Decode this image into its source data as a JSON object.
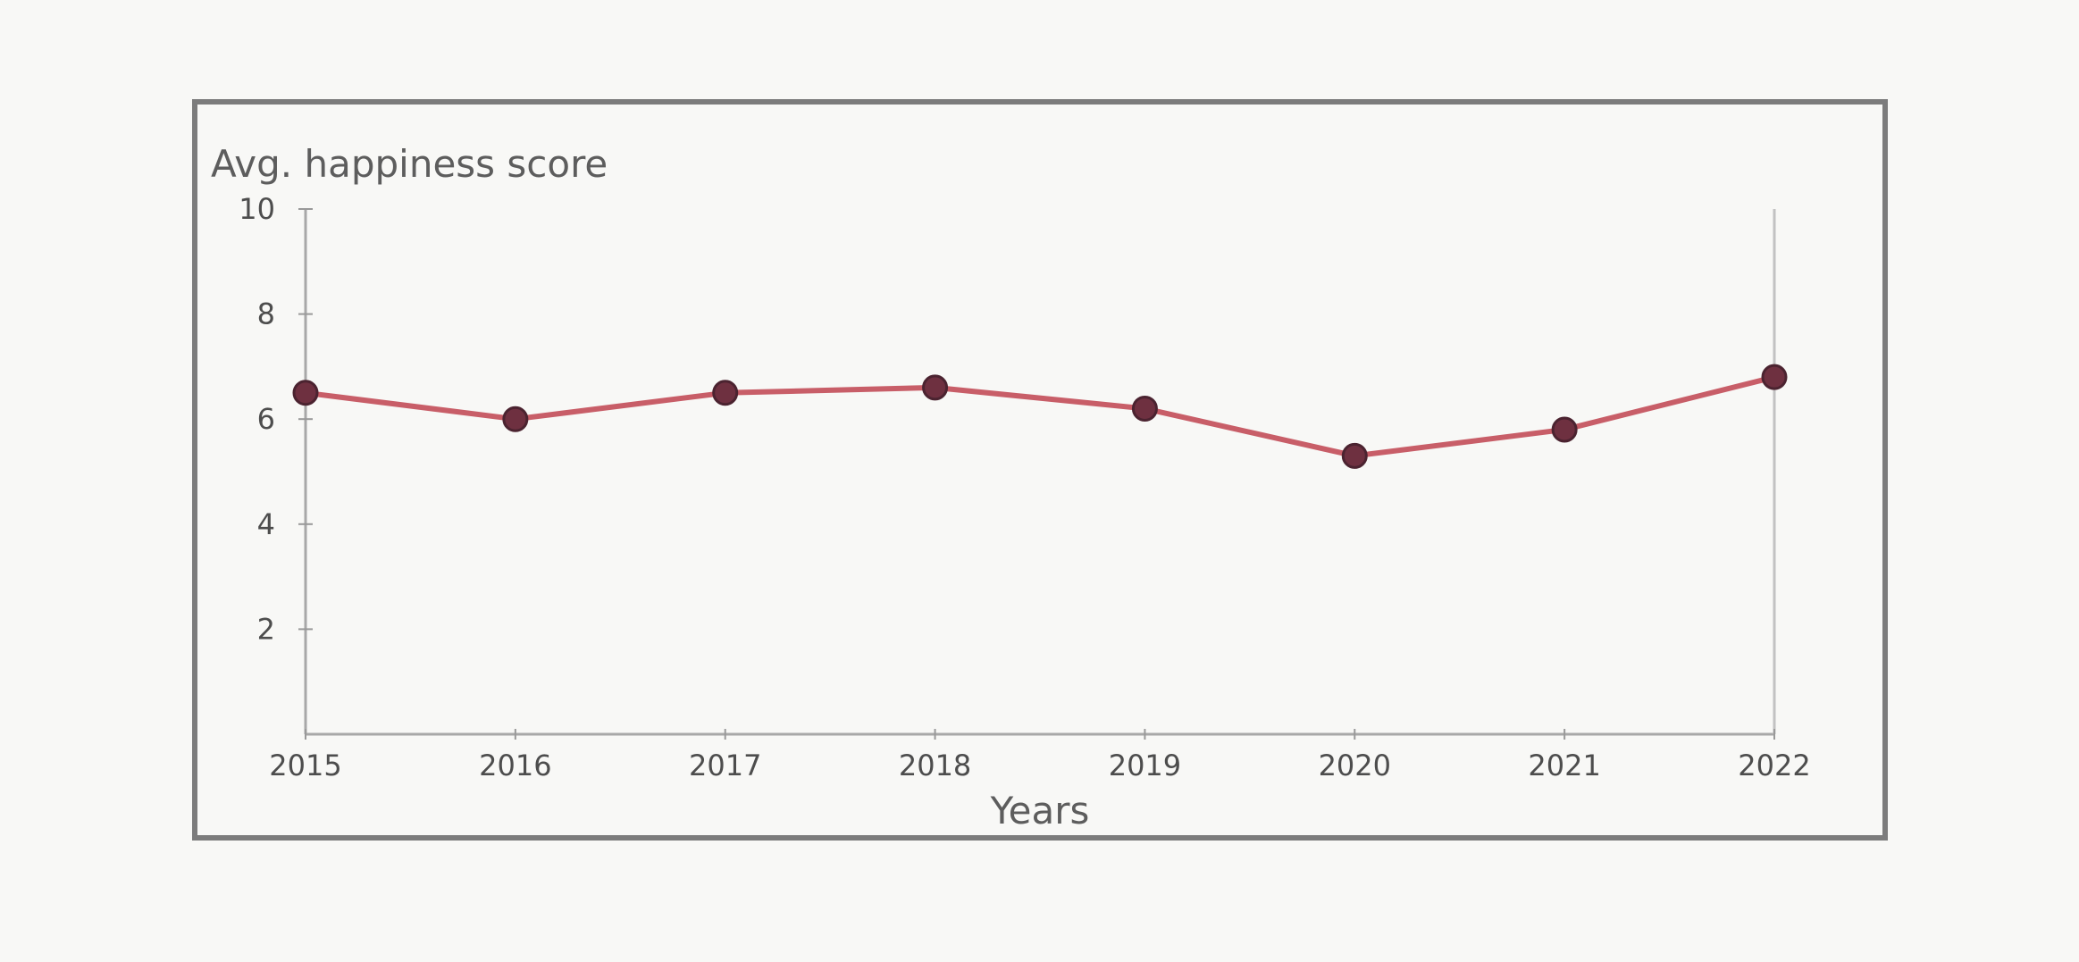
{
  "chart_data": {
    "type": "line",
    "title": "",
    "ylabel": "Avg. happiness score",
    "xlabel": "Years",
    "x": [
      "2015",
      "2016",
      "2017",
      "2018",
      "2019",
      "2020",
      "2021",
      "2022"
    ],
    "series": [
      {
        "values": [
          6.5,
          6.0,
          6.5,
          6.6,
          6.2,
          5.3,
          5.8,
          6.8
        ]
      }
    ],
    "ylim": [
      0,
      10
    ],
    "yticks": [
      "2",
      "4",
      "6",
      "8",
      "10"
    ],
    "grid": false,
    "legend": "none",
    "colors": {
      "line": "#c0434f",
      "point_fill": "#6e3040",
      "point_stroke": "#4b2330"
    }
  }
}
